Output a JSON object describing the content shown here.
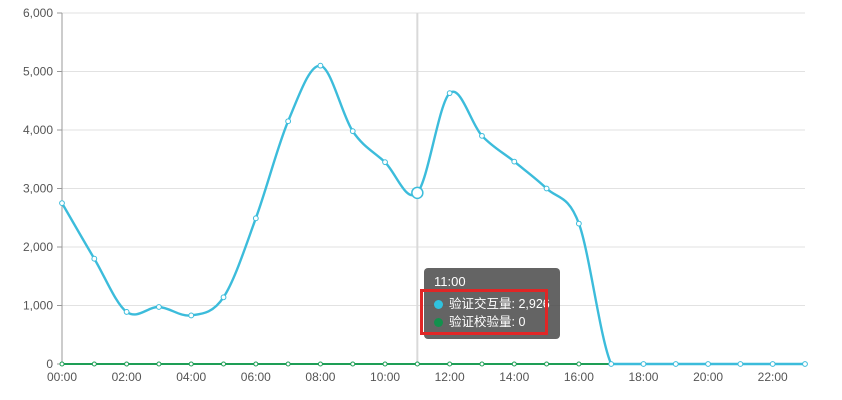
{
  "chart_data": {
    "type": "line",
    "smooth": true,
    "title": "",
    "xlabel": "",
    "ylabel": "",
    "grid": true,
    "legend_position": "none",
    "ylim": [
      0,
      6000
    ],
    "y_ticks": [
      0,
      1000,
      2000,
      3000,
      4000,
      5000,
      6000
    ],
    "y_tick_labels": [
      "0",
      "1,000",
      "2,000",
      "3,000",
      "4,000",
      "5,000",
      "6,000"
    ],
    "x": [
      "00:00",
      "01:00",
      "02:00",
      "03:00",
      "04:00",
      "05:00",
      "06:00",
      "07:00",
      "08:00",
      "09:00",
      "10:00",
      "11:00",
      "12:00",
      "13:00",
      "14:00",
      "15:00",
      "16:00",
      "17:00",
      "18:00",
      "19:00",
      "20:00",
      "21:00",
      "22:00",
      "23:00"
    ],
    "x_axis_visible_labels": [
      "00:00",
      "02:00",
      "04:00",
      "06:00",
      "08:00",
      "10:00",
      "12:00",
      "14:00",
      "16:00",
      "18:00",
      "20:00",
      "22:00"
    ],
    "series": [
      {
        "name": "验证交互量",
        "color": "#3cbcdb",
        "marker": "hollow-circle",
        "values": [
          2750,
          1800,
          890,
          975,
          830,
          1140,
          2490,
          4150,
          5100,
          3980,
          3450,
          2926,
          4630,
          3900,
          3460,
          3000,
          2400,
          0,
          0,
          0,
          0,
          0,
          0,
          0
        ]
      },
      {
        "name": "验证校验量",
        "color": "#1e9e56",
        "marker": "hollow-circle",
        "values": [
          0,
          0,
          0,
          0,
          0,
          0,
          0,
          0,
          0,
          0,
          0,
          0,
          0,
          0,
          0,
          0,
          0,
          0,
          0,
          0,
          0,
          0,
          0,
          0
        ]
      }
    ],
    "highlight": {
      "series_index": 0,
      "point_index": 11,
      "x_label": "11:00"
    }
  },
  "axis_pointer": {
    "color": "#d9d9d9",
    "at_label": "11:00"
  },
  "tooltip": {
    "title": "11:00",
    "items": [
      {
        "label": "验证交互量",
        "value": "2,926",
        "text": "验证交互量: 2,926",
        "color": "#2fc2de"
      },
      {
        "label": "验证校验量",
        "value": "0",
        "text": "验证校验量: 0",
        "color": "#12914d"
      }
    ],
    "highlight_border_color": "#e02626"
  },
  "style_colors": {
    "grid_line": "#e2e2e2",
    "axis_line": "#999999",
    "axis_label": "#555555",
    "background": "#ffffff"
  }
}
